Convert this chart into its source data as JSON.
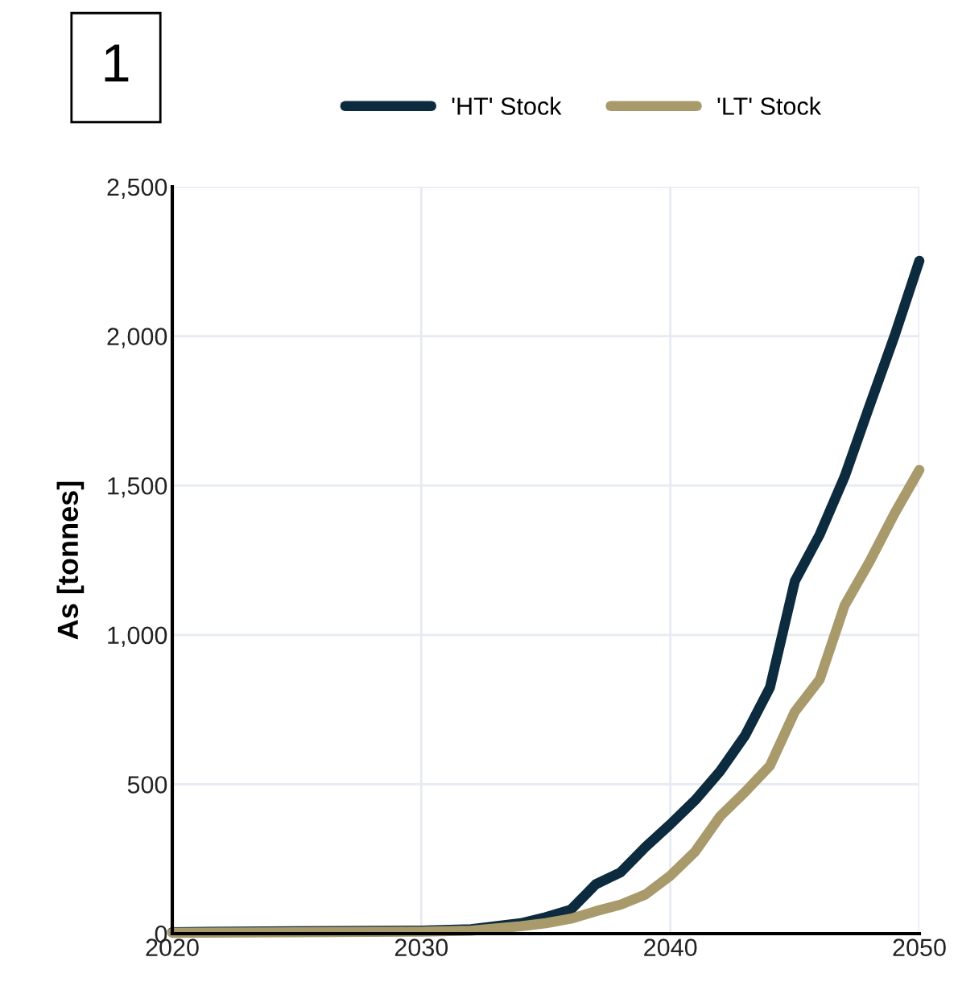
{
  "chart_data": {
    "type": "line",
    "ylabel": "As [tonnes]",
    "annotations": [
      "1"
    ],
    "x": [
      2020,
      2025,
      2030,
      2032,
      2034,
      2035,
      2036,
      2037,
      2038,
      2039,
      2040,
      2041,
      2042,
      2043,
      2044,
      2045,
      2046,
      2047,
      2048,
      2049,
      2050
    ],
    "series": [
      {
        "name": "'HT' Stock",
        "color": "#0d2b3e",
        "values": [
          5,
          8,
          10,
          15,
          35,
          55,
          80,
          165,
          205,
          290,
          366,
          447,
          544,
          663,
          824,
          1180,
          1336,
          1530,
          1767,
          2000,
          2252
        ]
      },
      {
        "name": "'LT' Stock",
        "color": "#a99a6c",
        "values": [
          3,
          5,
          7,
          10,
          25,
          35,
          50,
          75,
          97,
          131,
          194,
          275,
          393,
          474,
          562,
          743,
          851,
          1099,
          1245,
          1406,
          1552
        ]
      }
    ],
    "xlim": [
      2020,
      2050
    ],
    "xticks": [
      2020,
      2030,
      2040,
      2050
    ],
    "ylim": [
      0,
      2500
    ],
    "yticks": [
      {
        "value": 0,
        "label": "0"
      },
      {
        "value": 500,
        "label": "500"
      },
      {
        "value": 1000,
        "label": "1,000"
      },
      {
        "value": 1500,
        "label": "1,500"
      },
      {
        "value": 2000,
        "label": "2,000"
      },
      {
        "value": 2500,
        "label": "2,500"
      }
    ],
    "grid": true,
    "legend": "top",
    "marker": "none",
    "line_style": "solid"
  }
}
